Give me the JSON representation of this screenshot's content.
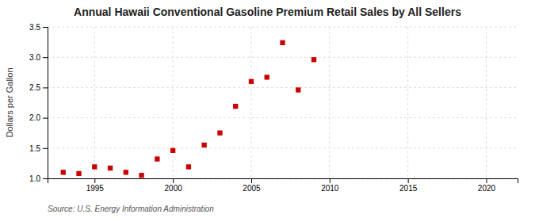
{
  "chart_data": {
    "type": "scatter",
    "title": "Annual Hawaii Conventional Gasoline Premium Retail Sales by All Sellers",
    "ylabel": "Dollars per Gallon",
    "source": "Source: U.S. Energy Information Administration",
    "color": "#cc0000",
    "marker": "square",
    "grid": true,
    "x": [
      1993,
      1994,
      1995,
      1996,
      1997,
      1998,
      1999,
      2000,
      2001,
      2002,
      2003,
      2004,
      2005,
      2006,
      2007,
      2008,
      2009
    ],
    "values": [
      1.1,
      1.08,
      1.19,
      1.17,
      1.1,
      1.05,
      1.32,
      1.46,
      1.19,
      1.55,
      1.75,
      2.19,
      2.6,
      2.67,
      3.24,
      2.46,
      2.96
    ],
    "xlim": [
      1992,
      2022
    ],
    "xticks": [
      1995,
      2000,
      2005,
      2010,
      2015,
      2020
    ],
    "ylim": [
      1.0,
      3.5
    ],
    "yticks": [
      {
        "value": 1.0,
        "label": "1.0"
      },
      {
        "value": 1.5,
        "label": "1.5"
      },
      {
        "value": 2.0,
        "label": "2.0"
      },
      {
        "value": 2.5,
        "label": "2.5"
      },
      {
        "value": 3.0,
        "label": "3.0"
      },
      {
        "value": 3.5,
        "label": "3.5"
      }
    ]
  }
}
